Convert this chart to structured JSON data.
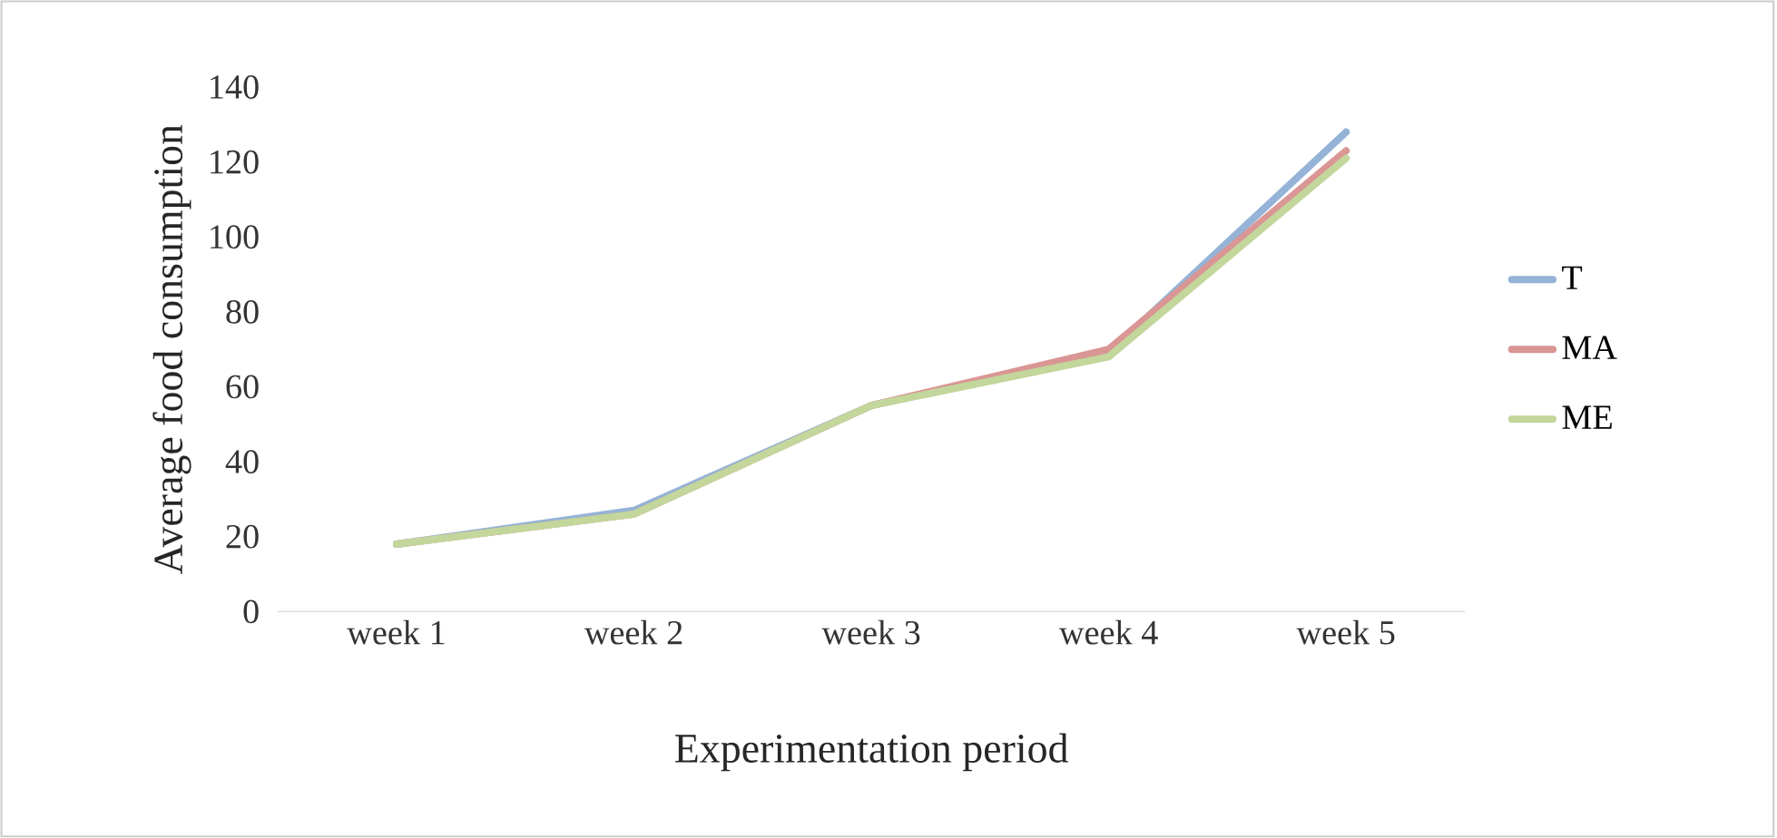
{
  "chart_data": {
    "type": "line",
    "xlabel": "Experimentation period",
    "ylabel": "Average food consumption",
    "categories": [
      "week 1",
      "week 2",
      "week 3",
      "week 4",
      "week 5"
    ],
    "series": [
      {
        "name": "T",
        "color": "#95b3d7",
        "values": [
          18,
          27,
          55,
          69,
          128
        ]
      },
      {
        "name": "MA",
        "color": "#d99694",
        "values": [
          18,
          26,
          55,
          70,
          123
        ]
      },
      {
        "name": "ME",
        "color": "#c3d69b",
        "values": [
          18,
          26,
          55,
          68,
          121
        ]
      }
    ],
    "ylim": [
      0,
      140
    ],
    "yticks": [
      0,
      20,
      40,
      60,
      80,
      100,
      120,
      140
    ],
    "grid": false,
    "legend": "right",
    "marker": "none",
    "line_style": "solid"
  }
}
